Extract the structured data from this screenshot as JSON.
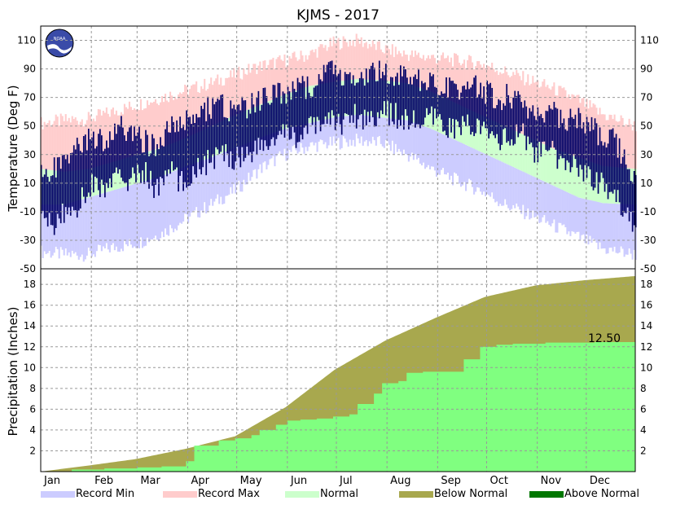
{
  "chart_data": [
    {
      "type": "area",
      "title": "KJMS - 2017",
      "ylabel": "Temperature (Deg F)",
      "ylim": [
        -50,
        120
      ],
      "yticks": [
        -50,
        -30,
        -10,
        10,
        30,
        50,
        70,
        90,
        110
      ],
      "months": [
        "Jan",
        "Feb",
        "Mar",
        "Apr",
        "May",
        "Jun",
        "Jul",
        "Aug",
        "Sep",
        "Oct",
        "Nov",
        "Dec"
      ],
      "grid": true,
      "series": [
        {
          "name": "Record Min",
          "kind": "band",
          "x_day": [
            1,
            15,
            30,
            45,
            60,
            75,
            90,
            105,
            120,
            135,
            150,
            165,
            180,
            195,
            210,
            225,
            240,
            255,
            270,
            285,
            300,
            315,
            330,
            345,
            365
          ],
          "low": [
            -38,
            -40,
            -40,
            -35,
            -32,
            -25,
            -15,
            -5,
            5,
            20,
            30,
            36,
            38,
            40,
            38,
            30,
            20,
            12,
            5,
            -5,
            -12,
            -20,
            -28,
            -36,
            -40
          ],
          "high": [
            -5,
            -5,
            0,
            5,
            10,
            15,
            22,
            28,
            35,
            42,
            48,
            52,
            56,
            58,
            56,
            54,
            48,
            40,
            32,
            24,
            16,
            8,
            0,
            -4,
            -5
          ]
        },
        {
          "name": "Normal",
          "kind": "band",
          "x_day": [
            1,
            15,
            30,
            45,
            60,
            75,
            90,
            105,
            120,
            135,
            150,
            165,
            180,
            195,
            210,
            225,
            240,
            255,
            270,
            285,
            300,
            315,
            330,
            345,
            365
          ],
          "low": [
            -5,
            -5,
            0,
            5,
            10,
            15,
            22,
            28,
            35,
            42,
            48,
            52,
            56,
            58,
            56,
            54,
            48,
            40,
            32,
            24,
            16,
            8,
            0,
            -4,
            -5
          ],
          "high": [
            20,
            18,
            20,
            25,
            30,
            35,
            42,
            50,
            58,
            65,
            72,
            78,
            81,
            83,
            82,
            80,
            74,
            66,
            58,
            50,
            42,
            34,
            28,
            22,
            20
          ]
        },
        {
          "name": "Record Max",
          "kind": "band",
          "x_day": [
            1,
            15,
            30,
            45,
            60,
            75,
            90,
            105,
            120,
            135,
            150,
            165,
            180,
            195,
            210,
            225,
            240,
            255,
            270,
            285,
            300,
            315,
            330,
            345,
            365
          ],
          "low": [
            20,
            18,
            20,
            25,
            30,
            35,
            42,
            50,
            58,
            65,
            72,
            78,
            81,
            83,
            82,
            80,
            74,
            66,
            58,
            50,
            42,
            34,
            28,
            22,
            20
          ],
          "high": [
            52,
            54,
            55,
            60,
            65,
            70,
            75,
            80,
            86,
            92,
            96,
            100,
            108,
            110,
            104,
            100,
            98,
            96,
            94,
            88,
            82,
            76,
            68,
            58,
            50
          ]
        },
        {
          "name": "Observed",
          "kind": "daily_range",
          "x_day": [
            1,
            8,
            16,
            24,
            32,
            40,
            48,
            56,
            64,
            72,
            80,
            88,
            96,
            104,
            112,
            120,
            128,
            136,
            144,
            152,
            160,
            168,
            176,
            184,
            192,
            200,
            208,
            216,
            224,
            232,
            240,
            248,
            256,
            264,
            272,
            280,
            288,
            296,
            304,
            312,
            320,
            328,
            336,
            344,
            352,
            360,
            365
          ],
          "low": [
            -15,
            -20,
            -10,
            -5,
            10,
            5,
            15,
            12,
            18,
            5,
            20,
            8,
            22,
            25,
            30,
            28,
            32,
            35,
            40,
            45,
            42,
            50,
            55,
            52,
            58,
            55,
            60,
            58,
            55,
            52,
            55,
            50,
            48,
            52,
            45,
            42,
            40,
            45,
            30,
            35,
            20,
            25,
            15,
            10,
            0,
            -10,
            -20
          ],
          "high": [
            10,
            15,
            25,
            30,
            40,
            35,
            45,
            42,
            35,
            30,
            50,
            48,
            55,
            58,
            60,
            55,
            60,
            65,
            68,
            70,
            72,
            75,
            85,
            80,
            82,
            78,
            85,
            80,
            82,
            78,
            75,
            72,
            70,
            78,
            70,
            65,
            68,
            62,
            55,
            58,
            50,
            52,
            45,
            40,
            35,
            20,
            10
          ]
        }
      ]
    },
    {
      "type": "area",
      "ylabel": "Precipitation (Inches)",
      "ylim": [
        0,
        19.5
      ],
      "yticks": [
        2,
        4,
        6,
        8,
        10,
        12,
        14,
        16,
        18
      ],
      "months": [
        "Jan",
        "Feb",
        "Mar",
        "Apr",
        "May",
        "Jun",
        "Jul",
        "Aug",
        "Sep",
        "Oct",
        "Nov",
        "Dec"
      ],
      "grid": true,
      "annotation": "12.50",
      "normal_cumulative": {
        "x_day": [
          1,
          31,
          59,
          90,
          120,
          151,
          181,
          212,
          243,
          273,
          304,
          334,
          365
        ],
        "values": [
          0,
          0.6,
          1.2,
          2.2,
          3.4,
          6.2,
          9.8,
          12.6,
          14.8,
          16.8,
          17.9,
          18.4,
          18.8
        ]
      },
      "observed_cumulative": {
        "x_day": [
          1,
          20,
          40,
          60,
          75,
          90,
          95,
          110,
          120,
          130,
          135,
          145,
          152,
          160,
          170,
          180,
          190,
          195,
          205,
          210,
          220,
          225,
          235,
          250,
          260,
          270,
          280,
          290,
          300,
          310,
          320,
          340,
          365
        ],
        "values": [
          0,
          0.2,
          0.3,
          0.4,
          0.5,
          1.0,
          2.5,
          3.0,
          3.2,
          3.5,
          4.0,
          4.5,
          4.9,
          5.0,
          5.1,
          5.3,
          5.5,
          6.5,
          7.5,
          8.5,
          8.7,
          9.5,
          9.6,
          9.6,
          10.8,
          12.0,
          12.2,
          12.3,
          12.3,
          12.4,
          12.4,
          12.45,
          12.5
        ]
      }
    }
  ],
  "legend": [
    {
      "label": "Record Min",
      "color": "#ccccff"
    },
    {
      "label": "Record Max",
      "color": "#ffcccc"
    },
    {
      "label": "Normal",
      "color": "#ccffcc"
    },
    {
      "label": "Below Normal",
      "color": "#a8a84e"
    },
    {
      "label": "Above Normal",
      "color": "#007700"
    }
  ],
  "colors": {
    "observed": "#000066",
    "precip_observed": "#80ff80",
    "precip_normal": "#a8a84e"
  }
}
